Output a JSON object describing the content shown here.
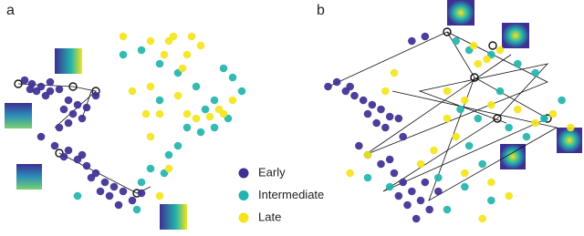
{
  "chart_data": [
    {
      "type": "scatter",
      "title": "a",
      "xlim": [
        0,
        300
      ],
      "ylim": [
        0,
        259
      ],
      "legend": true,
      "series": [
        {
          "name": "Early",
          "color": "#3d2f94",
          "x": [
            22,
            30,
            40,
            50,
            60,
            45,
            35,
            70,
            80,
            65,
            75,
            90,
            100,
            85,
            70,
            60,
            40,
            55,
            70,
            80,
            90,
            100,
            110,
            120,
            130,
            115,
            140,
            125,
            105,
            95,
            150,
            85,
            65,
            50,
            28
          ],
          "values": [
            171,
            167,
            164,
            159,
            161,
            154,
            159,
            149,
            144,
            139,
            134,
            141,
            154,
            129,
            124,
            119,
            109,
            99,
            94,
            84,
            77,
            69,
            59,
            54,
            49,
            44,
            39,
            34,
            49,
            64,
            47,
            89,
            87,
            169,
            161
          ]
        },
        {
          "name": "Intermediate",
          "color": "#22b5ad",
          "x": [
            150,
            170,
            190,
            210,
            230,
            240,
            250,
            260,
            200,
            215,
            230,
            180,
            175,
            160,
            150,
            80,
            145,
            220,
            245,
            170,
            130,
            190
          ],
          "values": [
            204,
            189,
            179,
            164,
            149,
            184,
            174,
            159,
            119,
            114,
            119,
            89,
            69,
            74,
            59,
            44,
            29,
            139,
            129,
            149,
            199,
            99
          ]
        },
        {
          "name": "Late",
          "color": "#f3e51c",
          "x": [
            130,
            160,
            185,
            200,
            215,
            175,
            195,
            160,
            170,
            200,
            210,
            225,
            240,
            250,
            235,
            160,
            155,
            190,
            180,
            170,
            180,
            205,
            140
          ],
          "values": [
            219,
            214,
            219,
            199,
            209,
            199,
            184,
            164,
            134,
            134,
            129,
            131,
            134,
            149,
            139,
            109,
            134,
            154,
            74,
            44,
            214,
            219,
            159
          ]
        }
      ]
    },
    {
      "type": "scatter",
      "title": "b",
      "xlim": [
        0,
        300
      ],
      "ylim": [
        0,
        259
      ],
      "legend": false,
      "series": [
        {
          "color": "#3d2f94",
          "x": [
            15,
            25,
            35,
            45,
            55,
            65,
            75,
            85,
            60,
            70,
            80,
            95,
            50,
            60,
            75,
            90,
            100,
            110,
            120,
            130,
            105,
            115,
            95,
            140,
            125,
            85,
            40,
            110,
            125,
            100
          ],
          "values": [
            164,
            169,
            159,
            154,
            149,
            144,
            139,
            131,
            134,
            124,
            119,
            129,
            99,
            89,
            79,
            69,
            59,
            49,
            39,
            29,
            34,
            19,
            44,
            49,
            59,
            84,
            164,
            214,
            219,
            109
          ]
        },
        {
          "color": "#22b5ad",
          "x": [
            160,
            175,
            200,
            230,
            250,
            165,
            185,
            220,
            240,
            190,
            170,
            150,
            200,
            260,
            280,
            140,
            175,
            210,
            60,
            85
          ],
          "values": [
            214,
            204,
            199,
            189,
            179,
            139,
            129,
            119,
            109,
            79,
            54,
            29,
            39,
            129,
            149,
            64,
            99,
            159,
            64,
            54
          ]
        },
        {
          "color": "#f3e51c",
          "x": [
            180,
            195,
            210,
            185,
            90,
            80,
            150,
            170,
            200,
            230,
            250,
            270,
            290,
            160,
            135,
            150,
            200,
            220,
            170,
            60,
            40,
            120,
            190
          ],
          "values": [
            209,
            194,
            204,
            189,
            179,
            159,
            159,
            149,
            144,
            139,
            124,
            134,
            119,
            109,
            94,
            129,
            59,
            44,
            69,
            89,
            69,
            79,
            19
          ]
        }
      ]
    }
  ]
}
